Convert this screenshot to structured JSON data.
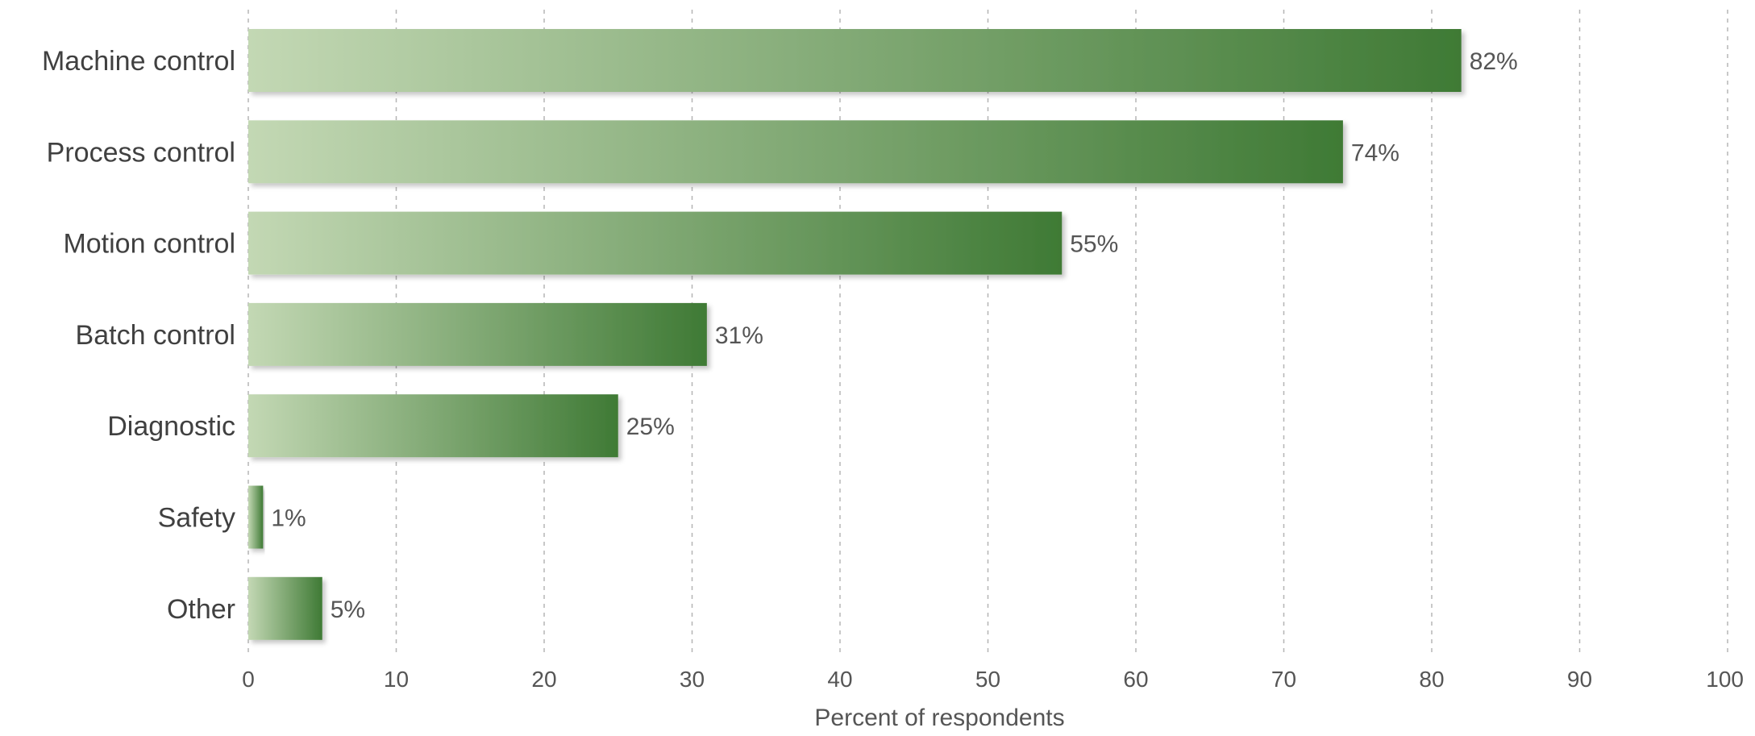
{
  "chart_data": {
    "type": "bar",
    "orientation": "horizontal",
    "categories": [
      "Machine control",
      "Process control",
      "Motion control",
      "Batch control",
      "Diagnostic",
      "Safety",
      "Other"
    ],
    "values": [
      82,
      74,
      55,
      31,
      25,
      1,
      5
    ],
    "value_labels": [
      "82%",
      "74%",
      "55%",
      "31%",
      "25%",
      "1%",
      "5%"
    ],
    "xlabel": "Percent of respondents",
    "ylabel": "",
    "xlim": [
      0,
      100
    ],
    "xticks": [
      0,
      10,
      20,
      30,
      40,
      50,
      60,
      70,
      80,
      90,
      100
    ],
    "grid": true,
    "colors": {
      "bar_light": "#c3d8b4",
      "bar_dark": "#3f7a35",
      "grid": "#b5b5b5",
      "text": "#404040"
    }
  }
}
